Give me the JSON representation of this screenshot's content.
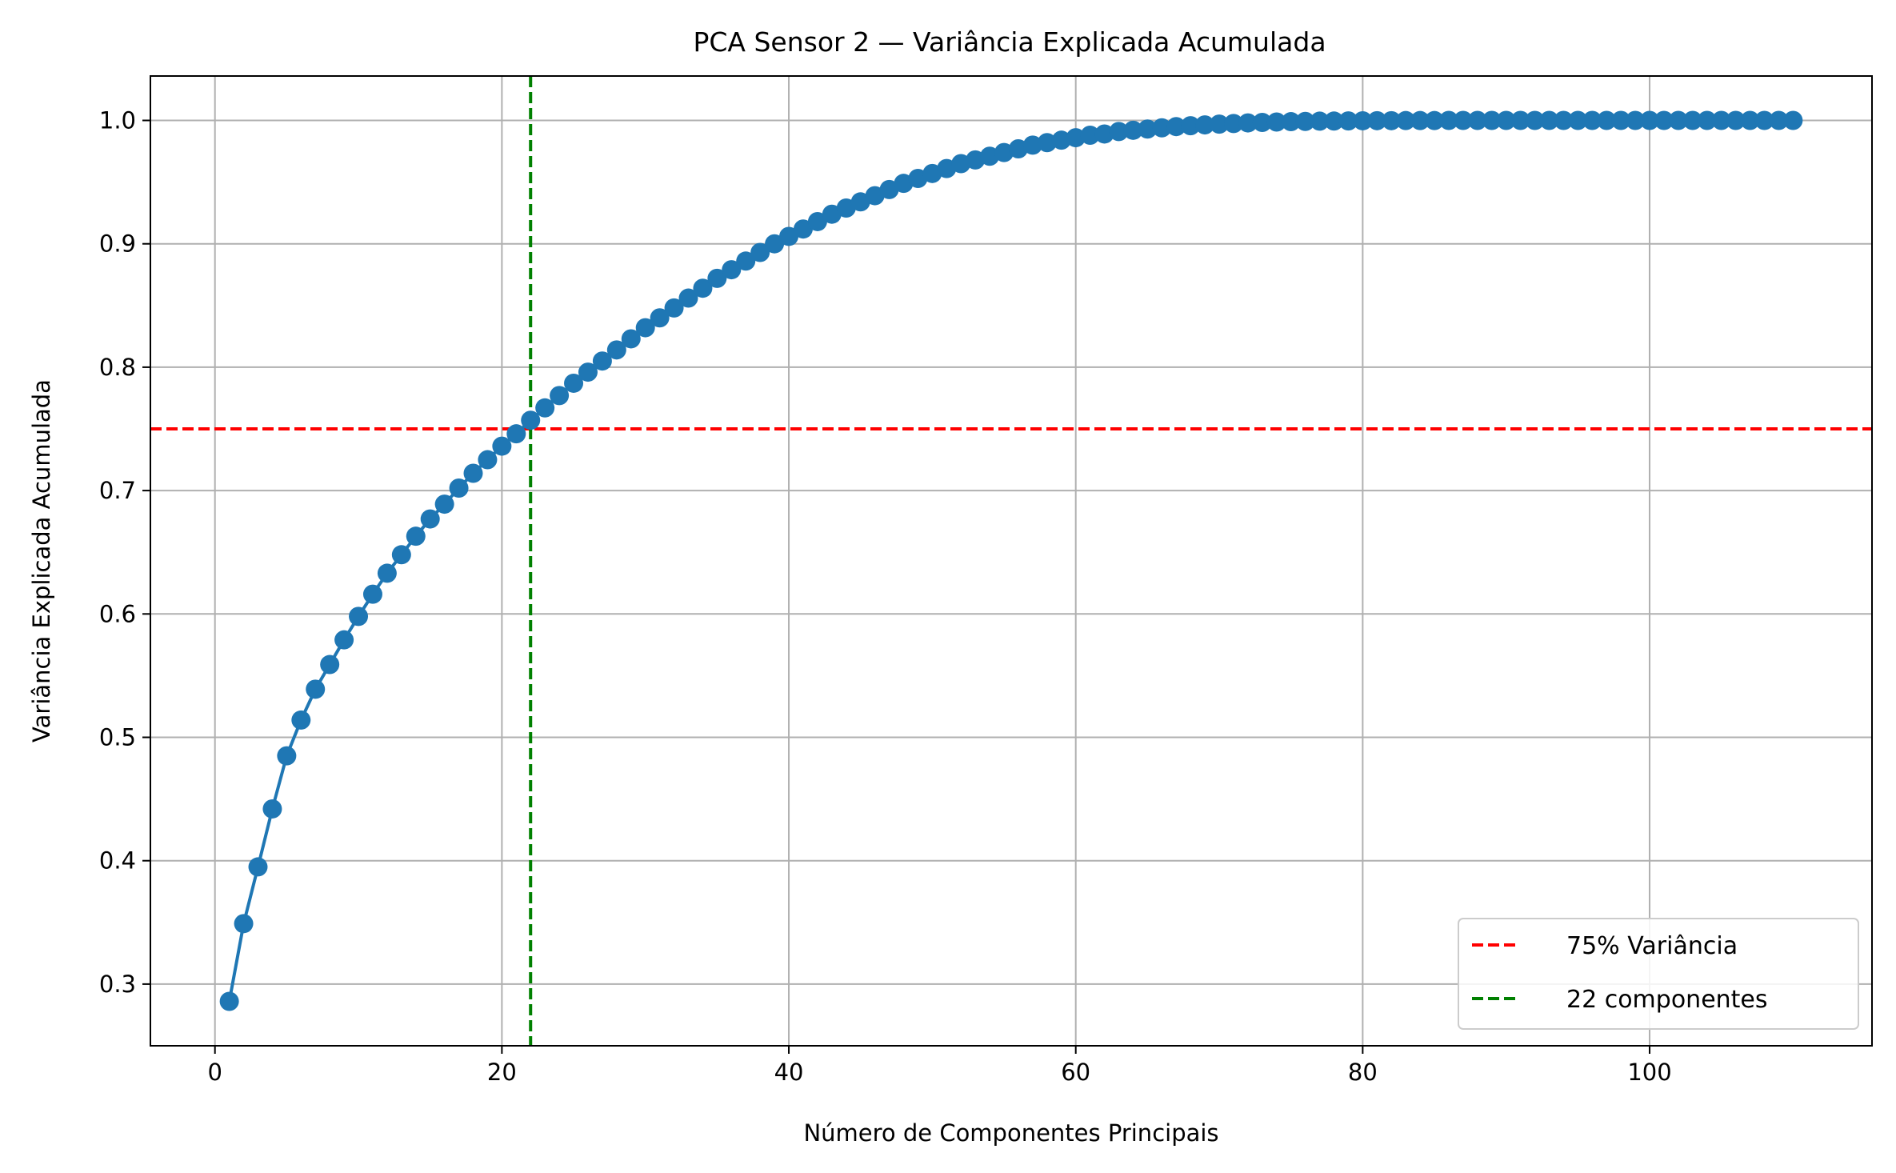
{
  "chart_data": {
    "type": "line",
    "title": "PCA Sensor 2 — Variância Explicada Acumulada",
    "xlabel": "Número de Componentes Principais",
    "ylabel": "Variância Explicada Acumulada",
    "xlim": [
      -4.5,
      115.5
    ],
    "ylim": [
      0.25,
      1.036
    ],
    "x_ticks": [
      0,
      20,
      40,
      60,
      80,
      100
    ],
    "x_tick_labels": [
      "0",
      "20",
      "40",
      "60",
      "80",
      "100"
    ],
    "y_ticks": [
      0.3,
      0.4,
      0.5,
      0.6,
      0.7,
      0.8,
      0.9,
      1.0
    ],
    "y_tick_labels": [
      "0.3",
      "0.4",
      "0.5",
      "0.6",
      "0.7",
      "0.8",
      "0.9",
      "1.0"
    ],
    "grid": true,
    "legend_position": "lower-right",
    "series": [
      {
        "color": "#1f77b4",
        "marker": "circle",
        "x": [
          1,
          2,
          3,
          4,
          5,
          6,
          7,
          8,
          9,
          10,
          11,
          12,
          13,
          14,
          15,
          16,
          17,
          18,
          19,
          20,
          21,
          22,
          23,
          24,
          25,
          26,
          27,
          28,
          29,
          30,
          31,
          32,
          33,
          34,
          35,
          36,
          37,
          38,
          39,
          40,
          41,
          42,
          43,
          44,
          45,
          46,
          47,
          48,
          49,
          50,
          51,
          52,
          53,
          54,
          55,
          56,
          57,
          58,
          59,
          60,
          61,
          62,
          63,
          64,
          65,
          66,
          67,
          68,
          69,
          70,
          71,
          72,
          73,
          74,
          75,
          76,
          77,
          78,
          79,
          80,
          81,
          82,
          83,
          84,
          85,
          86,
          87,
          88,
          89,
          90,
          91,
          92,
          93,
          94,
          95,
          96,
          97,
          98,
          99,
          100,
          101,
          102,
          103,
          104,
          105,
          106,
          107,
          108,
          109,
          110
        ],
        "y": [
          0.286,
          0.349,
          0.395,
          0.442,
          0.485,
          0.514,
          0.539,
          0.559,
          0.579,
          0.598,
          0.616,
          0.633,
          0.648,
          0.663,
          0.677,
          0.689,
          0.702,
          0.714,
          0.725,
          0.736,
          0.746,
          0.757,
          0.767,
          0.777,
          0.787,
          0.796,
          0.805,
          0.814,
          0.823,
          0.832,
          0.84,
          0.848,
          0.856,
          0.864,
          0.872,
          0.879,
          0.886,
          0.893,
          0.9,
          0.906,
          0.912,
          0.918,
          0.924,
          0.929,
          0.934,
          0.939,
          0.944,
          0.949,
          0.953,
          0.957,
          0.961,
          0.965,
          0.968,
          0.971,
          0.974,
          0.977,
          0.98,
          0.982,
          0.984,
          0.986,
          0.988,
          0.989,
          0.991,
          0.992,
          0.993,
          0.994,
          0.995,
          0.9957,
          0.9964,
          0.997,
          0.9975,
          0.998,
          0.9984,
          0.9987,
          0.999,
          0.9992,
          0.9994,
          0.9995,
          0.9996,
          0.9997,
          0.9998,
          0.9998,
          0.9999,
          0.9999,
          0.9999,
          1.0,
          1.0,
          1.0,
          1.0,
          1.0,
          1.0,
          1.0,
          1.0,
          1.0,
          1.0,
          1.0,
          1.0,
          1.0,
          1.0,
          1.0,
          1.0,
          1.0,
          1.0,
          1.0,
          1.0,
          1.0,
          1.0,
          1.0,
          1.0,
          1.0
        ]
      }
    ],
    "reference_lines": [
      {
        "orientation": "horizontal",
        "value": 0.75,
        "color": "#ff0000",
        "style": "dashed",
        "label": "75% Variância"
      },
      {
        "orientation": "vertical",
        "value": 22,
        "color": "#008000",
        "style": "dashed",
        "label": "22 componentes"
      }
    ]
  }
}
